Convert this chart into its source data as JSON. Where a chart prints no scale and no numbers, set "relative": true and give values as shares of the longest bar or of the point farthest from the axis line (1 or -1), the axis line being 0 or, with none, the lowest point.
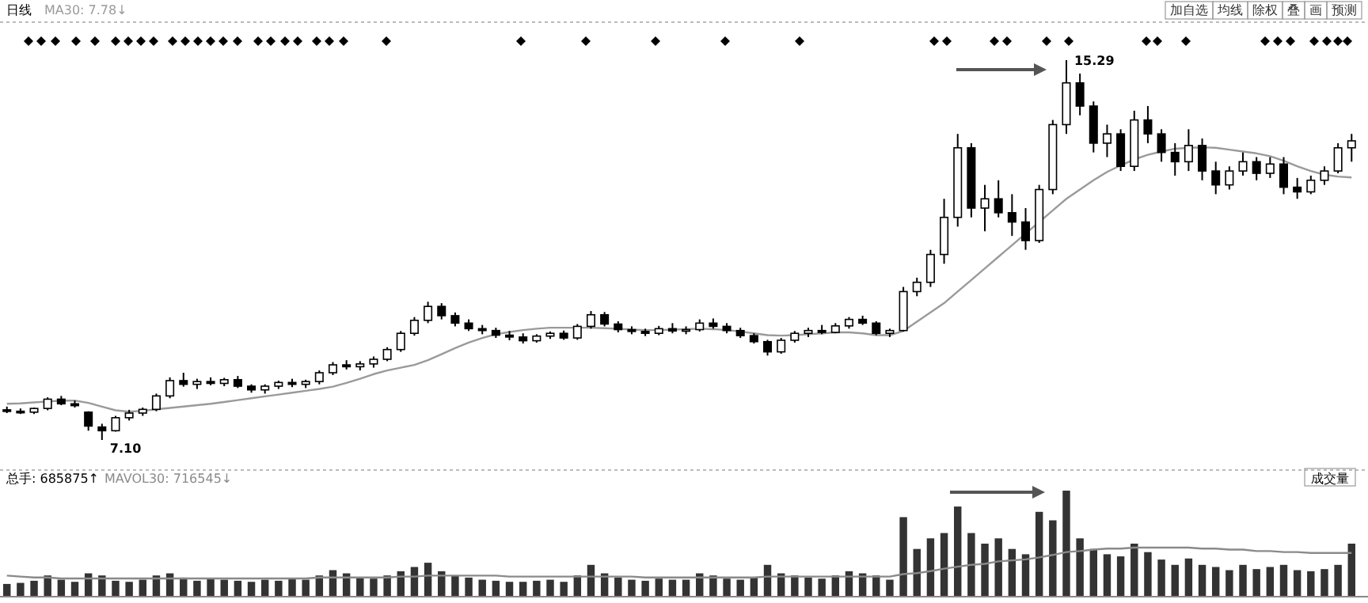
{
  "chart_data": [
    {
      "type": "candlestick",
      "title": "日线",
      "categories": [
        null,
        null,
        null,
        null,
        null,
        null,
        null,
        null,
        null,
        null,
        null,
        null,
        null,
        null,
        null,
        null,
        null,
        null,
        null,
        null,
        null,
        null,
        null,
        null,
        null,
        null,
        null,
        null,
        null,
        null,
        null,
        null,
        null,
        null,
        null,
        null,
        null,
        null,
        null,
        null,
        null,
        null,
        null,
        null,
        null,
        null,
        null,
        null,
        null,
        null,
        null,
        null,
        null,
        null,
        null,
        null,
        null,
        null,
        null,
        null,
        null,
        null,
        null,
        null,
        null,
        null,
        null,
        null,
        null,
        null,
        null,
        null,
        null,
        null,
        null,
        null,
        null,
        null,
        null,
        null,
        null,
        null,
        null,
        null,
        null,
        null,
        null,
        null,
        null,
        null,
        null,
        null,
        null,
        null,
        null,
        null,
        null,
        null,
        null,
        null
      ],
      "ohlc": [
        [
          7.75,
          7.82,
          7.68,
          7.72
        ],
        [
          7.72,
          7.78,
          7.66,
          7.7
        ],
        [
          7.7,
          7.8,
          7.66,
          7.78
        ],
        [
          7.78,
          8.02,
          7.74,
          7.98
        ],
        [
          7.98,
          8.05,
          7.85,
          7.88
        ],
        [
          7.88,
          7.95,
          7.8,
          7.84
        ],
        [
          7.7,
          7.72,
          7.3,
          7.4
        ],
        [
          7.38,
          7.45,
          7.1,
          7.3
        ],
        [
          7.3,
          7.62,
          7.28,
          7.58
        ],
        [
          7.58,
          7.75,
          7.52,
          7.68
        ],
        [
          7.68,
          7.8,
          7.62,
          7.76
        ],
        [
          7.76,
          8.1,
          7.72,
          8.05
        ],
        [
          8.05,
          8.45,
          8.0,
          8.38
        ],
        [
          8.38,
          8.55,
          8.25,
          8.3
        ],
        [
          8.3,
          8.42,
          8.2,
          8.36
        ],
        [
          8.36,
          8.45,
          8.28,
          8.32
        ],
        [
          8.32,
          8.44,
          8.26,
          8.4
        ],
        [
          8.4,
          8.48,
          8.22,
          8.26
        ],
        [
          8.26,
          8.3,
          8.12,
          8.18
        ],
        [
          8.18,
          8.3,
          8.1,
          8.26
        ],
        [
          8.26,
          8.38,
          8.2,
          8.34
        ],
        [
          8.34,
          8.42,
          8.24,
          8.3
        ],
        [
          8.3,
          8.4,
          8.22,
          8.36
        ],
        [
          8.36,
          8.6,
          8.3,
          8.55
        ],
        [
          8.55,
          8.78,
          8.5,
          8.72
        ],
        [
          8.72,
          8.82,
          8.62,
          8.68
        ],
        [
          8.68,
          8.8,
          8.6,
          8.74
        ],
        [
          8.74,
          8.9,
          8.66,
          8.84
        ],
        [
          8.84,
          9.1,
          8.8,
          9.05
        ],
        [
          9.05,
          9.45,
          9.0,
          9.4
        ],
        [
          9.4,
          9.75,
          9.35,
          9.68
        ],
        [
          9.68,
          10.08,
          9.62,
          9.98
        ],
        [
          9.98,
          10.05,
          9.7,
          9.78
        ],
        [
          9.78,
          9.85,
          9.55,
          9.62
        ],
        [
          9.62,
          9.7,
          9.45,
          9.5
        ],
        [
          9.5,
          9.58,
          9.38,
          9.46
        ],
        [
          9.46,
          9.52,
          9.3,
          9.36
        ],
        [
          9.36,
          9.45,
          9.25,
          9.32
        ],
        [
          9.32,
          9.4,
          9.18,
          9.24
        ],
        [
          9.24,
          9.38,
          9.2,
          9.34
        ],
        [
          9.34,
          9.44,
          9.28,
          9.4
        ],
        [
          9.4,
          9.46,
          9.26,
          9.3
        ],
        [
          9.3,
          9.6,
          9.26,
          9.55
        ],
        [
          9.55,
          9.88,
          9.5,
          9.8
        ],
        [
          9.8,
          9.86,
          9.55,
          9.6
        ],
        [
          9.6,
          9.66,
          9.42,
          9.48
        ],
        [
          9.48,
          9.55,
          9.38,
          9.44
        ],
        [
          9.44,
          9.5,
          9.34,
          9.4
        ],
        [
          9.4,
          9.56,
          9.36,
          9.5
        ],
        [
          9.5,
          9.62,
          9.4,
          9.45
        ],
        [
          9.45,
          9.55,
          9.38,
          9.48
        ],
        [
          9.48,
          9.7,
          9.44,
          9.62
        ],
        [
          9.62,
          9.72,
          9.5,
          9.55
        ],
        [
          9.55,
          9.62,
          9.4,
          9.46
        ],
        [
          9.46,
          9.52,
          9.3,
          9.35
        ],
        [
          9.35,
          9.4,
          9.18,
          9.22
        ],
        [
          9.22,
          9.26,
          8.92,
          9.0
        ],
        [
          9.0,
          9.3,
          8.96,
          9.25
        ],
        [
          9.25,
          9.45,
          9.2,
          9.4
        ],
        [
          9.4,
          9.52,
          9.32,
          9.46
        ],
        [
          9.46,
          9.58,
          9.38,
          9.42
        ],
        [
          9.42,
          9.62,
          9.4,
          9.56
        ],
        [
          9.56,
          9.75,
          9.5,
          9.7
        ],
        [
          9.7,
          9.78,
          9.58,
          9.62
        ],
        [
          9.62,
          9.66,
          9.36,
          9.4
        ],
        [
          9.4,
          9.5,
          9.32,
          9.46
        ],
        [
          9.46,
          10.4,
          9.44,
          10.3
        ],
        [
          10.3,
          10.6,
          10.2,
          10.5
        ],
        [
          10.5,
          11.2,
          10.4,
          11.1
        ],
        [
          11.1,
          12.3,
          10.9,
          11.9
        ],
        [
          11.9,
          13.7,
          11.7,
          13.4
        ],
        [
          13.4,
          13.5,
          11.9,
          12.1
        ],
        [
          12.1,
          12.6,
          11.6,
          12.3
        ],
        [
          12.3,
          12.7,
          11.9,
          12.0
        ],
        [
          12.0,
          12.4,
          11.5,
          11.8
        ],
        [
          11.8,
          12.1,
          11.2,
          11.4
        ],
        [
          11.4,
          12.6,
          11.35,
          12.5
        ],
        [
          12.5,
          14.0,
          12.4,
          13.9
        ],
        [
          13.9,
          15.29,
          13.7,
          14.8
        ],
        [
          14.8,
          15.0,
          14.1,
          14.3
        ],
        [
          14.3,
          14.4,
          13.3,
          13.5
        ],
        [
          13.5,
          13.9,
          13.2,
          13.7
        ],
        [
          13.7,
          13.8,
          12.9,
          13.0
        ],
        [
          13.0,
          14.2,
          12.9,
          14.0
        ],
        [
          14.0,
          14.3,
          13.5,
          13.7
        ],
        [
          13.7,
          13.8,
          13.1,
          13.3
        ],
        [
          13.3,
          13.5,
          12.8,
          13.1
        ],
        [
          13.1,
          13.8,
          12.9,
          13.45
        ],
        [
          13.45,
          13.6,
          12.7,
          12.9
        ],
        [
          12.9,
          13.1,
          12.4,
          12.6
        ],
        [
          12.6,
          13.0,
          12.5,
          12.9
        ],
        [
          12.9,
          13.3,
          12.8,
          13.1
        ],
        [
          13.1,
          13.2,
          12.7,
          12.85
        ],
        [
          12.85,
          13.2,
          12.75,
          13.05
        ],
        [
          13.05,
          13.2,
          12.4,
          12.55
        ],
        [
          12.55,
          12.75,
          12.3,
          12.45
        ],
        [
          12.45,
          12.8,
          12.4,
          12.7
        ],
        [
          12.7,
          13.0,
          12.6,
          12.9
        ],
        [
          12.9,
          13.5,
          12.85,
          13.4
        ],
        [
          13.4,
          13.7,
          13.1,
          13.55
        ]
      ],
      "series": [
        {
          "type": "line",
          "name": "MA30: 7.78↓",
          "color": "#9a9a9a",
          "values": [
            7.88,
            7.89,
            7.91,
            7.93,
            7.95,
            7.95,
            7.9,
            7.82,
            7.74,
            7.71,
            7.73,
            7.76,
            7.79,
            7.82,
            7.85,
            7.88,
            7.92,
            7.96,
            8.0,
            8.04,
            8.08,
            8.12,
            8.16,
            8.2,
            8.25,
            8.33,
            8.42,
            8.52,
            8.6,
            8.66,
            8.72,
            8.82,
            8.95,
            9.08,
            9.2,
            9.3,
            9.38,
            9.43,
            9.47,
            9.5,
            9.52,
            9.52,
            9.52,
            9.52,
            9.51,
            9.5,
            9.48,
            9.47,
            9.47,
            9.48,
            9.49,
            9.5,
            9.49,
            9.47,
            9.44,
            9.4,
            9.36,
            9.35,
            9.36,
            9.38,
            9.4,
            9.42,
            9.42,
            9.4,
            9.36,
            9.36,
            9.45,
            9.65,
            9.85,
            10.05,
            10.3,
            10.55,
            10.8,
            11.05,
            11.3,
            11.55,
            11.8,
            12.05,
            12.3,
            12.5,
            12.7,
            12.88,
            13.02,
            13.15,
            13.25,
            13.32,
            13.38,
            13.4,
            13.41,
            13.4,
            13.36,
            13.32,
            13.28,
            13.22,
            13.12,
            13.0,
            12.9,
            12.82,
            12.78,
            12.76
          ]
        }
      ],
      "annotations": [
        "15.29",
        "7.10",
        "加自选",
        "均线",
        "除权",
        "叠",
        "画",
        "预测"
      ]
    },
    {
      "type": "bar",
      "relative": true,
      "color": "#333333",
      "categories": [
        null,
        null,
        null,
        null,
        null,
        null,
        null,
        null,
        null,
        null,
        null,
        null,
        null,
        null,
        null,
        null,
        null,
        null,
        null,
        null,
        null,
        null,
        null,
        null,
        null,
        null,
        null,
        null,
        null,
        null,
        null,
        null,
        null,
        null,
        null,
        null,
        null,
        null,
        null,
        null,
        null,
        null,
        null,
        null,
        null,
        null,
        null,
        null,
        null,
        null,
        null,
        null,
        null,
        null,
        null,
        null,
        null,
        null,
        null,
        null,
        null,
        null,
        null,
        null,
        null,
        null,
        null,
        null,
        null,
        null,
        null,
        null,
        null,
        null,
        null,
        null,
        null,
        null,
        null,
        null,
        null,
        null,
        null,
        null,
        null,
        null,
        null,
        null,
        null,
        null,
        null,
        null,
        null,
        null,
        null,
        null,
        null,
        null,
        null,
        null
      ],
      "values": [
        0.12,
        0.13,
        0.15,
        0.2,
        0.16,
        0.14,
        0.22,
        0.2,
        0.15,
        0.14,
        0.16,
        0.2,
        0.22,
        0.18,
        0.15,
        0.17,
        0.16,
        0.15,
        0.14,
        0.16,
        0.15,
        0.17,
        0.16,
        0.2,
        0.25,
        0.22,
        0.18,
        0.17,
        0.2,
        0.24,
        0.28,
        0.32,
        0.24,
        0.2,
        0.18,
        0.16,
        0.15,
        0.14,
        0.14,
        0.15,
        0.16,
        0.14,
        0.2,
        0.3,
        0.22,
        0.18,
        0.16,
        0.15,
        0.17,
        0.16,
        0.16,
        0.22,
        0.2,
        0.17,
        0.16,
        0.18,
        0.3,
        0.22,
        0.2,
        0.18,
        0.17,
        0.2,
        0.24,
        0.22,
        0.2,
        0.16,
        0.75,
        0.45,
        0.55,
        0.6,
        0.85,
        0.6,
        0.5,
        0.55,
        0.45,
        0.4,
        0.8,
        0.72,
        1,
        0.55,
        0.45,
        0.4,
        0.38,
        0.5,
        0.42,
        0.35,
        0.3,
        0.36,
        0.3,
        0.28,
        0.25,
        0.3,
        0.26,
        0.28,
        0.3,
        0.25,
        0.24,
        0.26,
        0.3,
        0.5
      ],
      "annotations": [
        "总手: 685875↑",
        "成交量"
      ]
    },
    {
      "type": "line",
      "relative": true,
      "categories": [
        null,
        null,
        null,
        null,
        null,
        null,
        null,
        null,
        null,
        null,
        null,
        null,
        null,
        null,
        null,
        null,
        null,
        null,
        null,
        null,
        null,
        null,
        null,
        null,
        null,
        null,
        null,
        null,
        null,
        null,
        null,
        null,
        null,
        null,
        null,
        null,
        null,
        null,
        null,
        null,
        null,
        null,
        null,
        null,
        null,
        null,
        null,
        null,
        null,
        null,
        null,
        null,
        null,
        null,
        null,
        null,
        null,
        null,
        null,
        null,
        null,
        null,
        null,
        null,
        null,
        null,
        null,
        null,
        null,
        null,
        null,
        null,
        null,
        null,
        null,
        null,
        null,
        null,
        null,
        null,
        null,
        null,
        null,
        null,
        null,
        null,
        null,
        null,
        null,
        null,
        null,
        null,
        null,
        null,
        null,
        null,
        null,
        null,
        null,
        null
      ],
      "series": [
        {
          "name": "MAVOL30: 716545↓",
          "color": "#8a8a8a",
          "values": [
            0.43,
            0.41,
            0.39,
            0.39,
            0.37,
            0.37,
            0.37,
            0.37,
            0.37,
            0.37,
            0.37,
            0.37,
            0.37,
            0.37,
            0.37,
            0.37,
            0.37,
            0.37,
            0.37,
            0.37,
            0.37,
            0.37,
            0.37,
            0.39,
            0.39,
            0.39,
            0.39,
            0.39,
            0.39,
            0.41,
            0.41,
            0.43,
            0.43,
            0.43,
            0.43,
            0.43,
            0.43,
            0.41,
            0.41,
            0.41,
            0.41,
            0.41,
            0.41,
            0.41,
            0.41,
            0.41,
            0.41,
            0.39,
            0.39,
            0.39,
            0.39,
            0.39,
            0.39,
            0.39,
            0.39,
            0.39,
            0.41,
            0.41,
            0.41,
            0.41,
            0.41,
            0.41,
            0.41,
            0.41,
            0.41,
            0.41,
            0.46,
            0.48,
            0.52,
            0.57,
            0.61,
            0.65,
            0.67,
            0.72,
            0.74,
            0.76,
            0.8,
            0.85,
            0.91,
            0.93,
            0.96,
            0.98,
            0.98,
            1,
            1,
            1,
            1,
            1,
            0.98,
            0.98,
            0.96,
            0.96,
            0.93,
            0.93,
            0.91,
            0.91,
            0.89,
            0.89,
            0.89,
            0.89
          ]
        }
      ]
    }
  ]
}
